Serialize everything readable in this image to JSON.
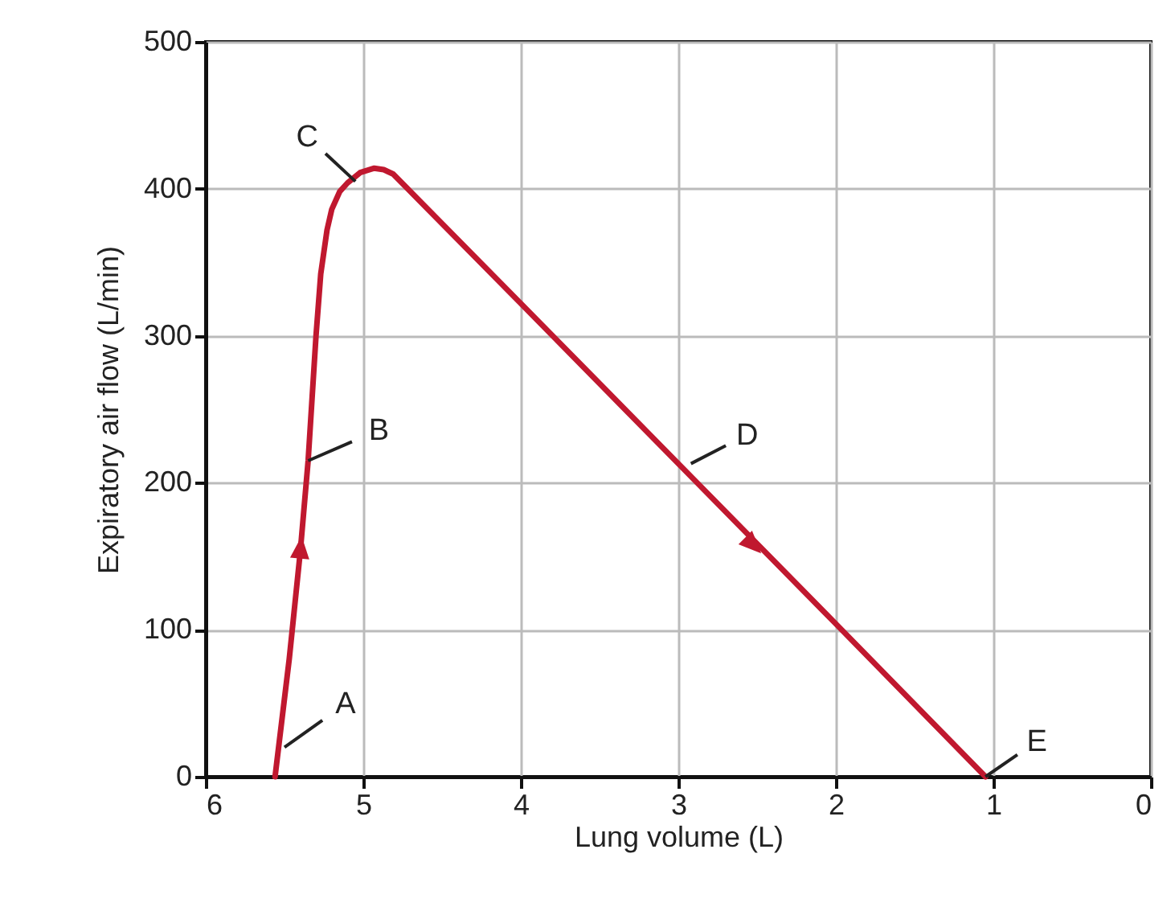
{
  "chart_data": {
    "type": "line",
    "xlabel": "Lung volume (L)",
    "ylabel": "Expiratory air flow (L/min)",
    "x": [
      5.56,
      5.47,
      5.4,
      5.35,
      5.3,
      5.27,
      5.23,
      5.2,
      5.15,
      5.1,
      5.02,
      4.93,
      4.87,
      4.81,
      4.0,
      3.0,
      2.0,
      1.05
    ],
    "series": [
      {
        "color": "#c0182f",
        "values": [
          0,
          80,
          153,
          215,
          300,
          342,
          372,
          386,
          398,
          404,
          411,
          414,
          413,
          410,
          322,
          213,
          104,
          0
        ]
      }
    ],
    "xlim": [
      6,
      0
    ],
    "xticks": [
      6,
      5,
      4,
      3,
      2,
      1,
      0
    ],
    "ylim": [
      0,
      500
    ],
    "yticks": [
      0,
      100,
      200,
      300,
      400,
      500
    ],
    "grid": true,
    "marker": "none",
    "line_style": "solid",
    "annotations": [
      {
        "text": "A",
        "x": 5.5,
        "y": 20
      },
      {
        "text": "B",
        "x": 5.35,
        "y": 215
      },
      {
        "text": "C",
        "x": 5.05,
        "y": 405
      },
      {
        "text": "D",
        "x": 2.92,
        "y": 213
      },
      {
        "text": "E",
        "x": 1.05,
        "y": 0
      }
    ]
  }
}
